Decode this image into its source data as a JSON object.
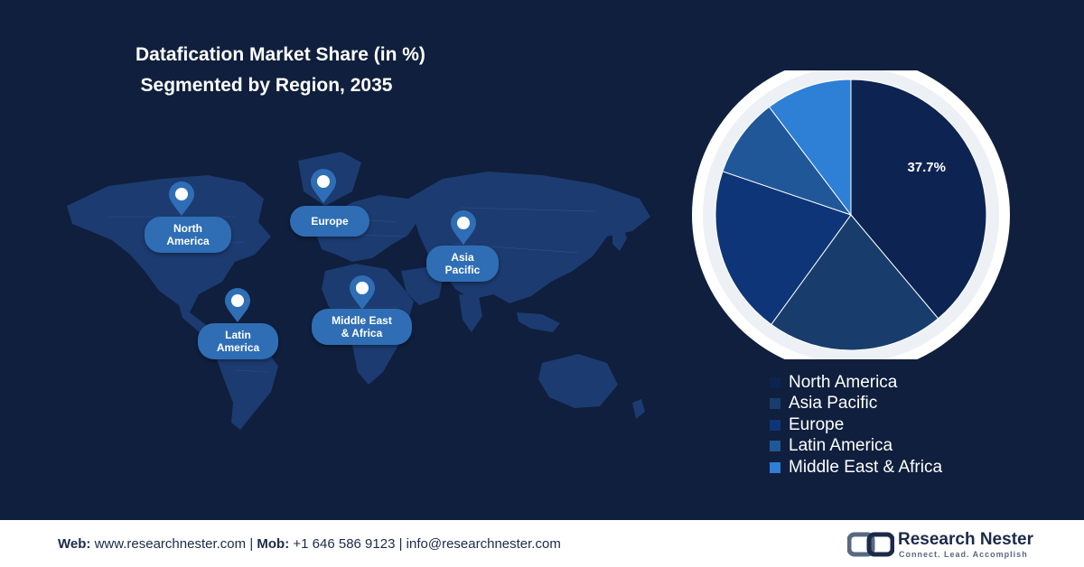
{
  "title": {
    "line1": "Datafication Market Share (in %)",
    "line2": "Segmented by Region, 2035"
  },
  "map_labels": [
    {
      "key": "north-america",
      "text": "North\nAmerica"
    },
    {
      "key": "europe",
      "text": "Europe"
    },
    {
      "key": "asia-pacific",
      "text": "Asia\nPacific"
    },
    {
      "key": "latin-america",
      "text": "Latin\nAmerica"
    },
    {
      "key": "middle-east-africa",
      "text": "Middle East\n& Africa"
    }
  ],
  "chart_data": {
    "type": "pie",
    "title": "Datafication Market Share (in %) Segmented by Region, 2035",
    "slices": [
      {
        "label": "North America",
        "value": 37.7,
        "color": "#0d2452",
        "data_label": "37.7%"
      },
      {
        "label": "Asia Pacific",
        "value": 20.5,
        "color": "#183d6c",
        "data_label": ""
      },
      {
        "label": "Europe",
        "value": 19.6,
        "color": "#0e3577",
        "data_label": ""
      },
      {
        "label": "Latin America",
        "value": 9.2,
        "color": "#1f5799",
        "data_label": ""
      },
      {
        "label": "Middle East & Africa",
        "value": 10.0,
        "color": "#2e7fd6",
        "data_label": ""
      }
    ],
    "legend_position": "bottom-right"
  },
  "footer": {
    "web_label": "Web:",
    "web_value": "www.researchnester.com",
    "sep1": "|",
    "mob_label": "Mob:",
    "mob_value": "+1 646 586 9123",
    "sep2": "|",
    "email": "info@researchnester.com"
  },
  "logo": {
    "name": "Research Nester",
    "tagline": "Connect. Lead. Accomplish"
  },
  "colors": {
    "background": "#0f1f3d",
    "pie_ring": "#ffffff",
    "pill": "#2f6eb5",
    "map_land": "#1d3d73"
  }
}
